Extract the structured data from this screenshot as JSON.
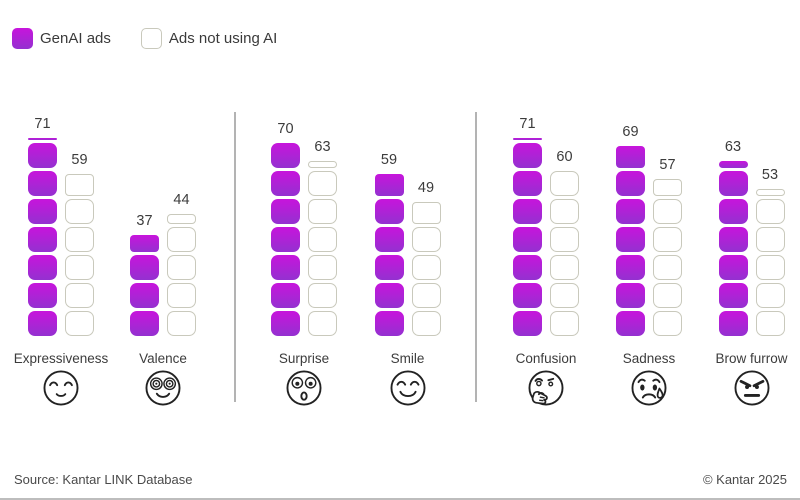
{
  "legend": {
    "items": [
      {
        "label": "GenAI ads",
        "swatch": "filled"
      },
      {
        "label": "Ads not using AI",
        "swatch": "outline"
      }
    ]
  },
  "colors": {
    "genai_top": "#c714dc",
    "genai_bottom": "#9431d0",
    "outline_border": "#c9c9bc",
    "divider": "#b3b3b3"
  },
  "chart_data": {
    "type": "bar",
    "title": "",
    "block_unit": 10,
    "ylim": [
      0,
      100
    ],
    "categories": [
      "Expressiveness",
      "Valence",
      "Surprise",
      "Smile",
      "Confusion",
      "Sadness",
      "Brow furrow"
    ],
    "series": [
      {
        "name": "GenAI ads",
        "values": [
          71,
          37,
          70,
          59,
          71,
          69,
          63
        ]
      },
      {
        "name": "Ads not using AI",
        "values": [
          59,
          44,
          63,
          49,
          60,
          57,
          53
        ]
      }
    ],
    "groups": [
      [
        "Expressiveness",
        "Valence"
      ],
      [
        "Surprise",
        "Smile"
      ],
      [
        "Confusion",
        "Sadness",
        "Brow furrow"
      ]
    ],
    "icons": {
      "Expressiveness": "relieved-face",
      "Valence": "hypno-eyes-face",
      "Surprise": "surprised-face",
      "Smile": "smiling-face",
      "Confusion": "thinking-face",
      "Sadness": "sad-tear-face",
      "Brow furrow": "angry-face"
    }
  },
  "footer": {
    "source": "Source: Kantar LINK Database",
    "copyright": "© Kantar 2025"
  }
}
